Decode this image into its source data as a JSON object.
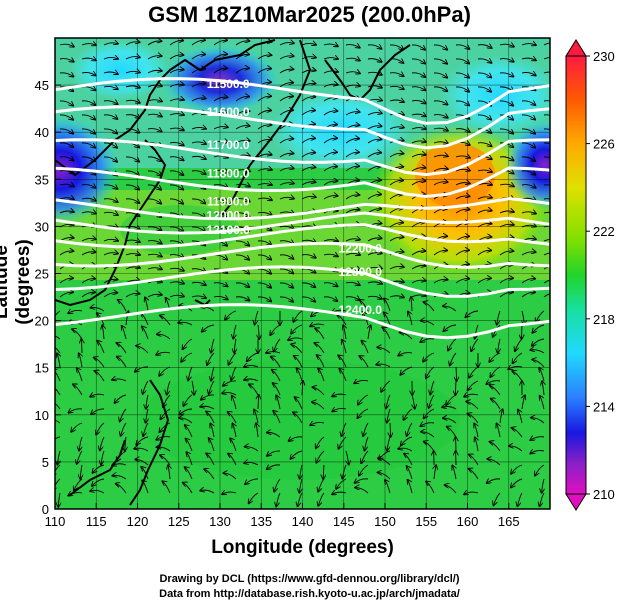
{
  "title": "GSM 18Z10Mar2025 (200.0hPa)",
  "xlabel": "Longitude (degrees)",
  "ylabel": "Latitude  (degrees)",
  "credits": [
    "Drawing by DCL (https://www.gfd-dennou.org/library/dcl/)",
    "Data from http://database.rish.kyoto-u.ac.jp/arch/jmadata/"
  ],
  "map": {
    "lon_range": [
      110,
      170
    ],
    "lat_range": [
      0,
      50
    ],
    "lon_ticks": [
      "110",
      "115",
      "120",
      "125",
      "130",
      "135",
      "140",
      "145",
      "150",
      "155",
      "160",
      "165"
    ],
    "lat_ticks": [
      "0",
      "5",
      "10",
      "15",
      "20",
      "25",
      "30",
      "35",
      "40",
      "45"
    ],
    "shading_field": "temperature",
    "colorbar": {
      "labels": [
        "230",
        "226",
        "222",
        "218",
        "214",
        "210"
      ],
      "range": [
        210,
        230
      ],
      "colors": [
        "#ff1a40",
        "#ff5a00",
        "#ffaa00",
        "#e0e000",
        "#7fe000",
        "#22d42a",
        "#17e0a0",
        "#22d8ff",
        "#2a80ff",
        "#1818e0",
        "#8a20c8",
        "#e010c0"
      ]
    },
    "contours": [
      {
        "label": "11500.0",
        "lat": 44.5
      },
      {
        "label": "11600.0",
        "lat": 41.5
      },
      {
        "label": "11700.0",
        "lat": 38.0
      },
      {
        "label": "11800.0",
        "lat": 35.0
      },
      {
        "label": "11900.0",
        "lat": 32.0
      },
      {
        "label": "12000.0",
        "lat": 30.5
      },
      {
        "label": "12100.0",
        "lat": 29.0
      },
      {
        "label": "12200.0",
        "lat": 27.0
      },
      {
        "label": "12300.0",
        "lat": 24.5
      },
      {
        "label": "12400.0",
        "lat": 20.5
      }
    ]
  }
}
